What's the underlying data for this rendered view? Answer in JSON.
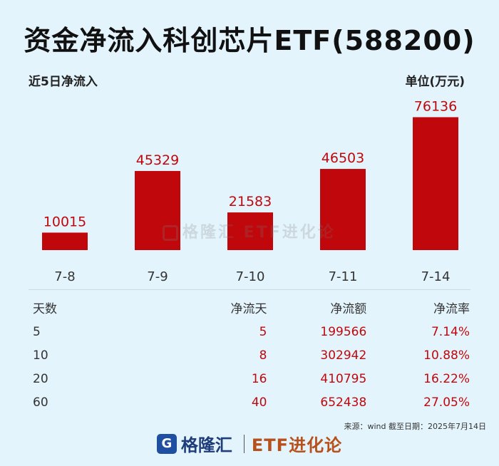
{
  "title": "资金净流入科创芯片ETF(588200)",
  "subtitle_left": "近5日净流入",
  "subtitle_right": "单位(万元)",
  "chart_data": {
    "type": "bar",
    "categories": [
      "7-8",
      "7-9",
      "7-10",
      "7-11",
      "7-14"
    ],
    "values": [
      10015,
      45329,
      21583,
      46503,
      76136
    ],
    "ylim": [
      0,
      80000
    ],
    "grid": false,
    "bar_color": "#c0080c"
  },
  "watermark": "格隆汇 ETF进化论",
  "table": {
    "headers": [
      "天数",
      "净流天",
      "净流额",
      "净流率"
    ],
    "rows": [
      [
        "5",
        "5",
        "199566",
        "7.14%"
      ],
      [
        "10",
        "8",
        "302942",
        "10.88%"
      ],
      [
        "20",
        "16",
        "410795",
        "16.22%"
      ],
      [
        "60",
        "40",
        "652438",
        "27.05%"
      ]
    ]
  },
  "source": "来源：wind 截至日期：2025年7月14日",
  "footer": {
    "logo_letter": "G",
    "brand": "格隆汇",
    "brand2": "ETF进化论"
  },
  "colors": {
    "accent": "#c0080c",
    "background": "#e4f4fc"
  }
}
